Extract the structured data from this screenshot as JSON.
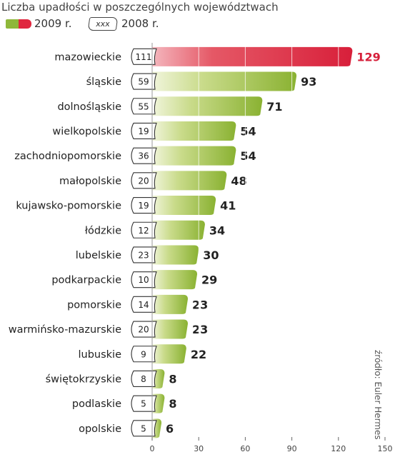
{
  "chart_data": {
    "type": "bar",
    "orientation": "horizontal",
    "title": "Liczba upadłości w poszczególnych województwach",
    "legend": {
      "current_label": "2009 r.",
      "previous_box": "xxx",
      "previous_label": "2008 r."
    },
    "categories": [
      "mazowieckie",
      "śląskie",
      "dolnośląskie",
      "wielkopolskie",
      "zachodniopomorskie",
      "małopolskie",
      "kujawsko-pomorskie",
      "łódzkie",
      "lubelskie",
      "podkarpackie",
      "pomorskie",
      "warmińsko-mazurskie",
      "lubuskie",
      "świętokrzyskie",
      "podlaskie",
      "opolskie"
    ],
    "series": [
      {
        "name": "2009 r.",
        "values": [
          129,
          93,
          71,
          54,
          54,
          48,
          41,
          34,
          30,
          29,
          23,
          23,
          22,
          8,
          8,
          6
        ]
      },
      {
        "name": "2008 r.",
        "values": [
          111,
          59,
          55,
          19,
          36,
          20,
          19,
          12,
          23,
          10,
          14,
          20,
          9,
          8,
          5,
          5
        ]
      }
    ],
    "xlim": [
      0,
      150
    ],
    "xticks": [
      0,
      30,
      60,
      90,
      120,
      150
    ],
    "grid": true,
    "highlight_index": 0,
    "colors": {
      "bar": "#8fb83a",
      "highlight": "#e0273f",
      "highlight_text": "#d61f3a"
    }
  },
  "source": "źródło: Euler Hermes"
}
